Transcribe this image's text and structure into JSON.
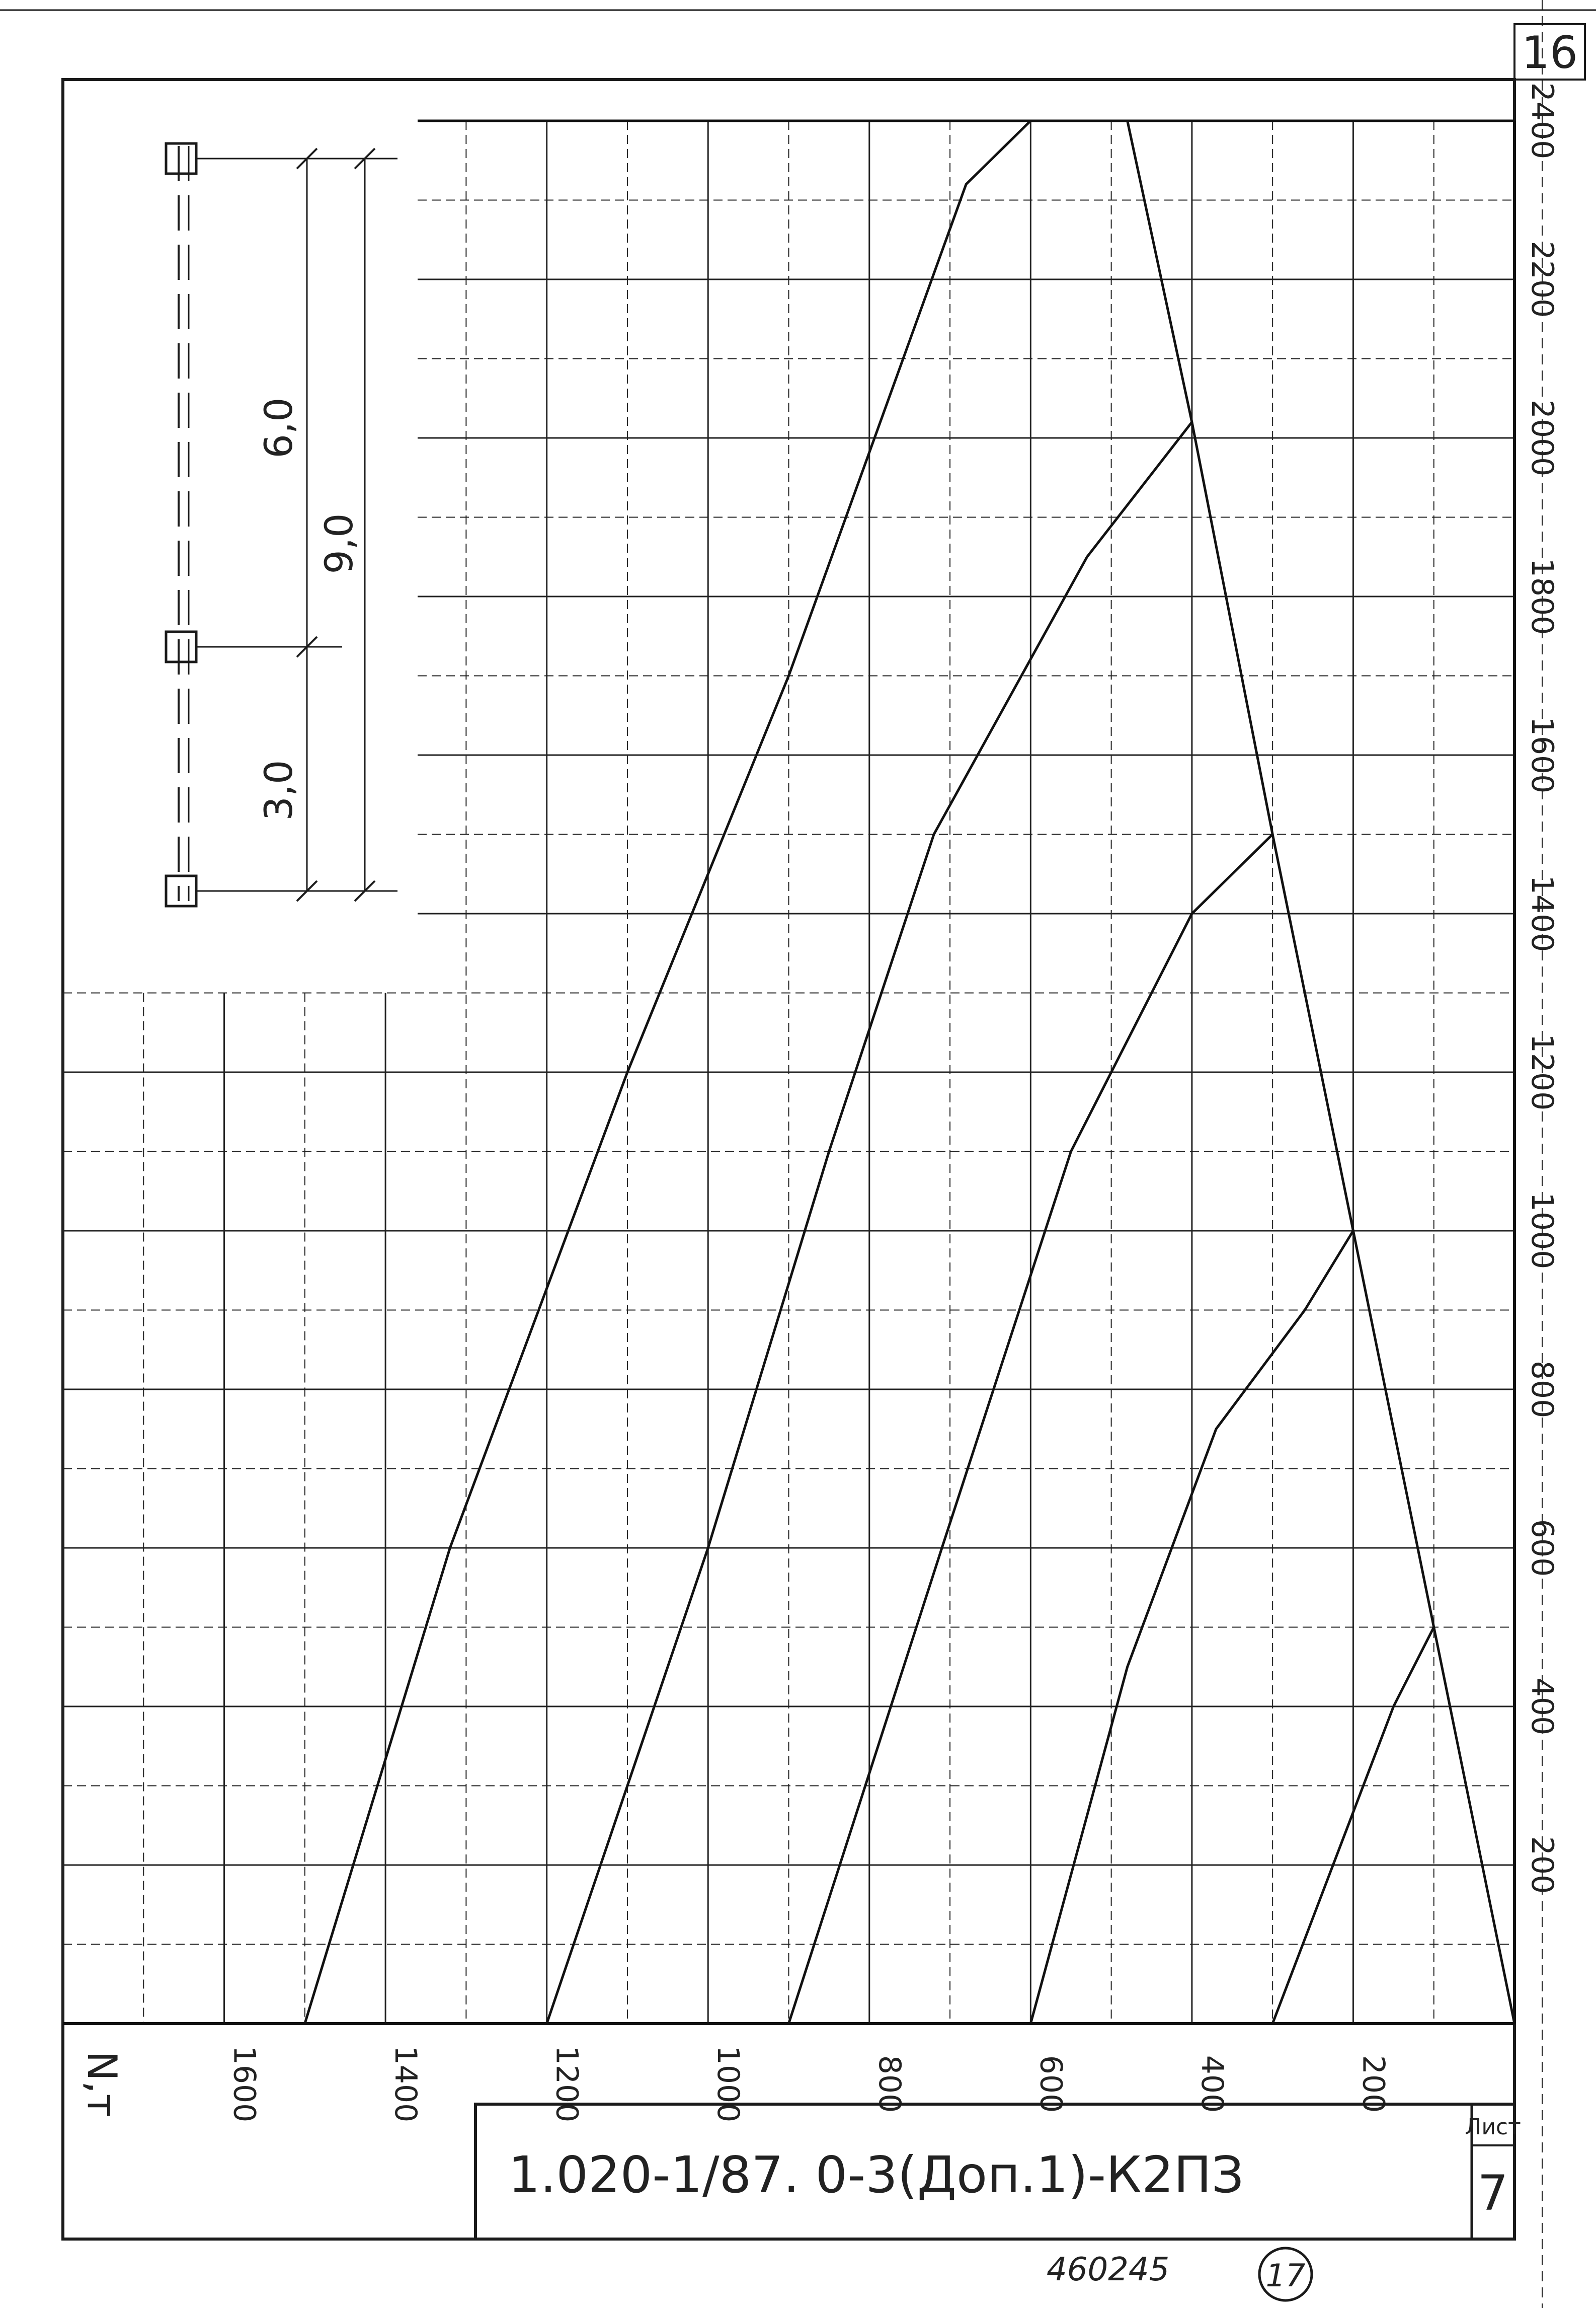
{
  "sheet_number_top": "16",
  "title_block": {
    "designation": "1.020-1/87. 0-3(Доп.1)-К2ПЗ",
    "sheet_label": "Лист",
    "sheet_value": "7"
  },
  "archive_number": "460245",
  "circled_number": "17",
  "schema": {
    "dim_upper": "6,0",
    "dim_total": "9,0",
    "dim_lower": "3,0"
  },
  "chart_data": {
    "type": "line",
    "title": "",
    "xlabel": "N,т",
    "ylabel": "",
    "xlim": [
      0,
      1800
    ],
    "ylim": [
      0,
      2400
    ],
    "x_reversed": true,
    "x_ticks": [
      "1600",
      "1400",
      "1200",
      "1000",
      "800",
      "600",
      "400",
      "200"
    ],
    "y_ticks": [
      "200",
      "400",
      "600",
      "800",
      "1000",
      "1200",
      "1400",
      "1600",
      "1800",
      "2000",
      "2200",
      "2400"
    ],
    "grid": true,
    "series": [
      {
        "points": [
          [
            1500,
            0
          ],
          [
            1320,
            600
          ],
          [
            1100,
            1200
          ],
          [
            900,
            1700
          ],
          [
            680,
            2320
          ],
          [
            600,
            2400
          ]
        ]
      },
      {
        "points": [
          [
            1200,
            0
          ],
          [
            1000,
            600
          ],
          [
            850,
            1100
          ],
          [
            720,
            1500
          ],
          [
            530,
            1850
          ],
          [
            400,
            2020
          ]
        ]
      },
      {
        "points": [
          [
            900,
            0
          ],
          [
            710,
            600
          ],
          [
            550,
            1100
          ],
          [
            400,
            1400
          ],
          [
            300,
            1500
          ]
        ]
      },
      {
        "points": [
          [
            600,
            0
          ],
          [
            480,
            450
          ],
          [
            370,
            750
          ],
          [
            260,
            900
          ],
          [
            200,
            1000
          ]
        ]
      },
      {
        "points": [
          [
            300,
            0
          ],
          [
            150,
            400
          ],
          [
            100,
            500
          ]
        ]
      },
      {
        "points": [
          [
            0,
            0
          ],
          [
            100,
            500
          ],
          [
            200,
            1000
          ],
          [
            300,
            1500
          ],
          [
            400,
            2020
          ],
          [
            480,
            2400
          ]
        ]
      }
    ]
  }
}
